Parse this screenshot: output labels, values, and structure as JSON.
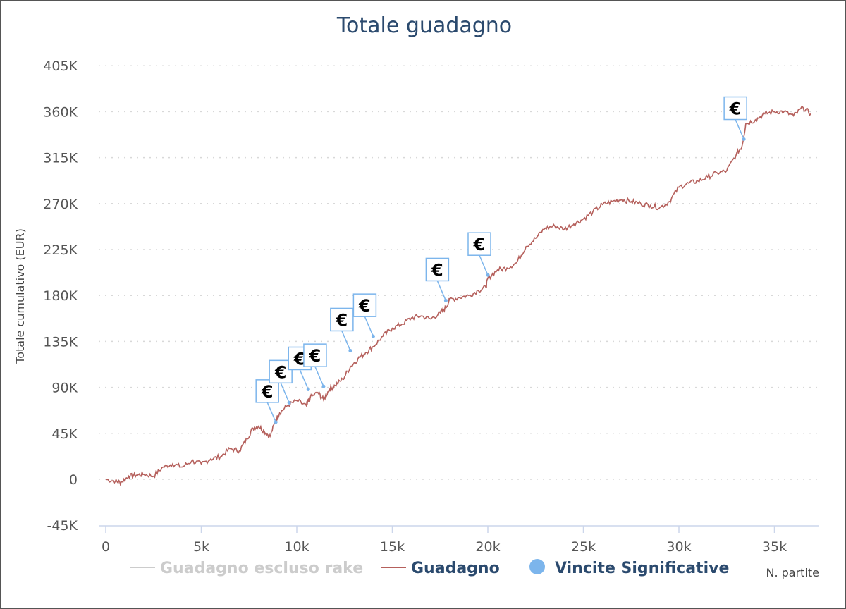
{
  "chart_data": {
    "type": "line",
    "title": "Totale guadagno",
    "ylabel": "Totale cumulativo (EUR)",
    "xlabel": "N. partite",
    "xlim": [
      -300,
      37000
    ],
    "ylim": [
      -45000,
      420000
    ],
    "yticks": [
      -45000,
      0,
      45000,
      90000,
      135000,
      180000,
      225000,
      270000,
      315000,
      360000,
      405000
    ],
    "ytick_labels": [
      "-45K",
      "0",
      "45K",
      "90K",
      "135K",
      "180K",
      "225K",
      "270K",
      "315K",
      "360K",
      "405K"
    ],
    "xticks": [
      0,
      5000,
      10000,
      15000,
      20000,
      25000,
      30000,
      35000
    ],
    "xtick_labels": [
      "0",
      "5k",
      "10k",
      "15k",
      "20k",
      "25k",
      "30k",
      "35k"
    ],
    "grid": true,
    "legend_position": "bottom",
    "series": [
      {
        "name": "Guadagno escluso rake",
        "color": "#cccccc",
        "hidden": true,
        "x": [],
        "y": []
      },
      {
        "name": "Guadagno",
        "color": "#b5605c",
        "x": [
          0,
          500,
          800,
          1200,
          1600,
          2000,
          2500,
          3000,
          3500,
          4000,
          4500,
          5000,
          5500,
          6000,
          6500,
          7000,
          7400,
          7700,
          8000,
          8300,
          8600,
          8900,
          9100,
          9500,
          10000,
          10500,
          10700,
          11100,
          11400,
          11700,
          12000,
          12400,
          12800,
          13200,
          13600,
          14000,
          14500,
          15000,
          15500,
          16000,
          16500,
          17000,
          17500,
          17800,
          18000,
          18500,
          19000,
          19500,
          19900,
          20000,
          20500,
          21000,
          21500,
          22000,
          22500,
          23000,
          23500,
          24000,
          24500,
          25000,
          25500,
          26000,
          26500,
          27000,
          27500,
          28000,
          28500,
          29000,
          29500,
          30000,
          30500,
          31000,
          31500,
          32000,
          32500,
          33000,
          33300,
          33500,
          34000,
          34500,
          35000,
          35500,
          36000,
          36500,
          36900
        ],
        "y": [
          0,
          -2000,
          -3000,
          3000,
          4000,
          5000,
          3000,
          12000,
          15000,
          12000,
          18000,
          15000,
          20000,
          22000,
          30000,
          28000,
          40000,
          50000,
          52000,
          47000,
          42000,
          58000,
          65000,
          72000,
          77000,
          72000,
          80000,
          85000,
          78000,
          88000,
          92000,
          98000,
          110000,
          118000,
          124000,
          130000,
          140000,
          148000,
          152000,
          158000,
          160000,
          157000,
          163000,
          168000,
          176000,
          178000,
          180000,
          185000,
          188000,
          197000,
          205000,
          207000,
          212000,
          228000,
          236000,
          246000,
          248000,
          245000,
          250000,
          255000,
          262000,
          269000,
          272000,
          274000,
          272000,
          270000,
          268000,
          266000,
          272000,
          286000,
          290000,
          292000,
          296000,
          300000,
          302000,
          318000,
          326000,
          348000,
          352000,
          358000,
          360000,
          360000,
          356000,
          364000,
          358000
        ]
      }
    ],
    "markers": {
      "name": "Vincite Significative",
      "color": "#7cb5ec",
      "symbol": "€",
      "points": [
        {
          "x": 8900,
          "y": 56000
        },
        {
          "x": 9600,
          "y": 75000
        },
        {
          "x": 10600,
          "y": 88000
        },
        {
          "x": 11400,
          "y": 91000
        },
        {
          "x": 12800,
          "y": 126000
        },
        {
          "x": 14000,
          "y": 140000
        },
        {
          "x": 17800,
          "y": 175000
        },
        {
          "x": 20000,
          "y": 200000
        },
        {
          "x": 33400,
          "y": 333000
        }
      ]
    }
  }
}
